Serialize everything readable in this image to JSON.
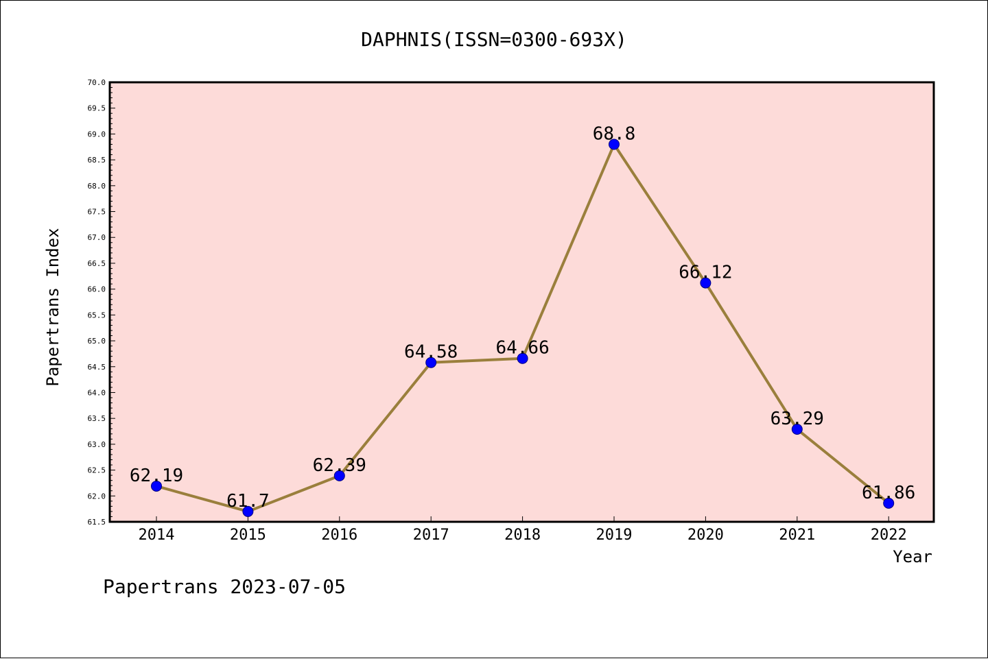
{
  "chart_data": {
    "type": "line",
    "title": "DAPHNIS(ISSN=0300-693X)",
    "xlabel": "Year",
    "ylabel": "Papertrans Index",
    "categories": [
      "2014",
      "2015",
      "2016",
      "2017",
      "2018",
      "2019",
      "2020",
      "2021",
      "2022"
    ],
    "values": [
      62.19,
      61.7,
      62.39,
      64.58,
      64.66,
      68.8,
      66.12,
      63.29,
      61.86
    ],
    "data_labels": [
      "62.19",
      "61.7",
      "62.39",
      "64.58",
      "64.66",
      "68.8",
      "66.12",
      "63.29",
      "61.86"
    ],
    "ylim": [
      61.5,
      70.0
    ],
    "yticks": [
      "61.5",
      "62.0",
      "62.5",
      "63.0",
      "63.5",
      "64.0",
      "64.5",
      "65.0",
      "65.5",
      "66.0",
      "66.5",
      "67.0",
      "67.5",
      "68.0",
      "68.5",
      "69.0",
      "69.5",
      "70.0"
    ],
    "grid": false,
    "legend": "none",
    "colors": {
      "plot_background": "#fddbd9",
      "line": "#9a7f3c",
      "marker": "#0000ff",
      "axes": "#000000"
    },
    "footer": "Papertrans 2023-07-05"
  }
}
